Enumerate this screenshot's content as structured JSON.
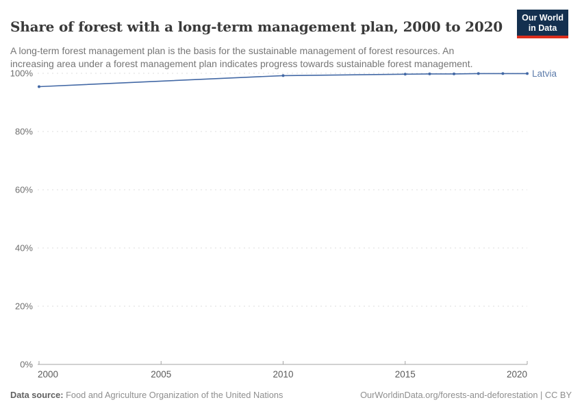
{
  "header": {
    "title": "Share of forest with a long-term management plan, 2000 to 2020",
    "subtitle": "A long-term forest management plan is the basis for the sustainable management of forest resources. An increasing area under a forest management plan indicates progress towards sustainable forest management.",
    "logo": {
      "line1": "Our World",
      "line2": "in Data"
    }
  },
  "chart_data": {
    "type": "line",
    "title": "Share of forest with a long-term management plan, 2000 to 2020",
    "xlabel": "",
    "ylabel": "",
    "xlim": [
      2000,
      2020
    ],
    "ylim": [
      0,
      100
    ],
    "x_ticks": [
      2000,
      2005,
      2010,
      2015,
      2020
    ],
    "y_ticks": [
      0,
      20,
      40,
      60,
      80,
      100
    ],
    "y_tick_suffix": "%",
    "grid": "horizontal-dashed",
    "legend_position": "line-end-label",
    "series": [
      {
        "name": "Latvia",
        "color": "#4268a5",
        "points": [
          {
            "x": 2000,
            "y": 95.4
          },
          {
            "x": 2010,
            "y": 99.2
          },
          {
            "x": 2015,
            "y": 99.7
          },
          {
            "x": 2016,
            "y": 99.8
          },
          {
            "x": 2017,
            "y": 99.8
          },
          {
            "x": 2018,
            "y": 99.9
          },
          {
            "x": 2019,
            "y": 99.9
          },
          {
            "x": 2020,
            "y": 99.9
          }
        ]
      }
    ]
  },
  "footer": {
    "source_label": "Data source:",
    "source_text": "Food and Agriculture Organization of the United Nations",
    "right_text": "OurWorldinData.org/forests-and-deforestation | CC BY"
  },
  "colors": {
    "line": "#4268a5",
    "entity_label": "#5d7cab",
    "grid": "#dcdcdc",
    "axis": "#a3a3a3",
    "y_label": "#6e6e6e",
    "x_label": "#5a5a5a",
    "logo_bg": "#14304f",
    "logo_red": "#dc2e1c"
  }
}
